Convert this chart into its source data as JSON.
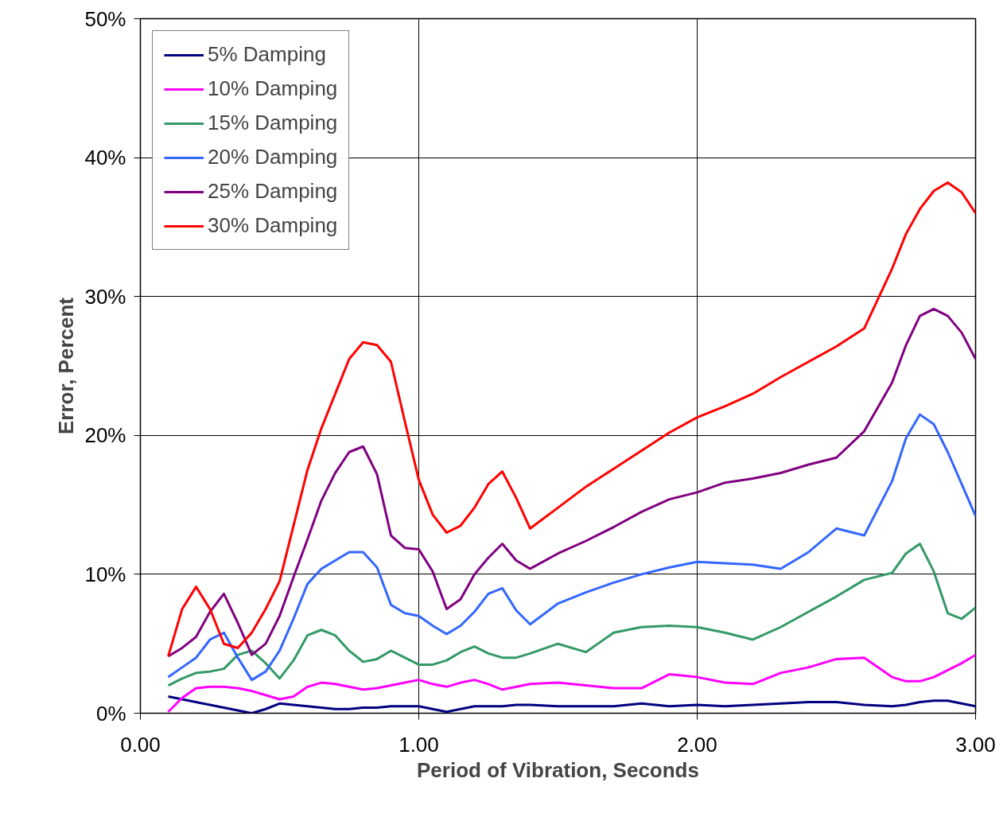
{
  "chart_data": {
    "type": "line",
    "xlabel": "Period of Vibration, Seconds",
    "ylabel": "Error, Percent",
    "x": [
      0.1,
      0.15,
      0.2,
      0.25,
      0.3,
      0.35,
      0.4,
      0.45,
      0.5,
      0.55,
      0.6,
      0.65,
      0.7,
      0.75,
      0.8,
      0.85,
      0.9,
      0.95,
      1.0,
      1.05,
      1.1,
      1.15,
      1.2,
      1.25,
      1.3,
      1.35,
      1.4,
      1.5,
      1.6,
      1.7,
      1.8,
      1.9,
      2.0,
      2.1,
      2.2,
      2.3,
      2.4,
      2.5,
      2.6,
      2.7,
      2.75,
      2.8,
      2.85,
      2.9,
      2.95,
      3.0
    ],
    "series": [
      {
        "name": "5% Damping",
        "color": "#000080",
        "values": [
          1.2,
          1.0,
          0.8,
          0.6,
          0.4,
          0.2,
          0.0,
          0.3,
          0.7,
          0.6,
          0.5,
          0.4,
          0.3,
          0.3,
          0.4,
          0.4,
          0.5,
          0.5,
          0.5,
          0.3,
          0.1,
          0.3,
          0.5,
          0.5,
          0.5,
          0.6,
          0.6,
          0.5,
          0.5,
          0.5,
          0.7,
          0.5,
          0.6,
          0.5,
          0.6,
          0.7,
          0.8,
          0.8,
          0.6,
          0.5,
          0.6,
          0.8,
          0.9,
          0.9,
          0.7,
          0.5
        ]
      },
      {
        "name": "10% Damping",
        "color": "#ff00ff",
        "values": [
          0.1,
          1.1,
          1.8,
          1.9,
          1.9,
          1.8,
          1.6,
          1.3,
          1.0,
          1.2,
          1.9,
          2.2,
          2.1,
          1.9,
          1.7,
          1.8,
          2.0,
          2.2,
          2.4,
          2.1,
          1.9,
          2.2,
          2.4,
          2.1,
          1.7,
          1.9,
          2.1,
          2.2,
          2.0,
          1.8,
          1.8,
          2.8,
          2.6,
          2.2,
          2.1,
          2.9,
          3.3,
          3.9,
          4.0,
          2.6,
          2.3,
          2.3,
          2.6,
          3.1,
          3.6,
          4.2
        ]
      },
      {
        "name": "15% Damping",
        "color": "#339966",
        "values": [
          2.0,
          2.5,
          2.9,
          3.0,
          3.2,
          4.2,
          4.5,
          3.6,
          2.5,
          3.8,
          5.6,
          6.0,
          5.6,
          4.5,
          3.7,
          3.9,
          4.5,
          4.0,
          3.5,
          3.5,
          3.8,
          4.4,
          4.8,
          4.3,
          4.0,
          4.0,
          4.3,
          5.0,
          4.4,
          5.8,
          6.2,
          6.3,
          6.2,
          5.8,
          5.3,
          6.2,
          7.3,
          8.4,
          9.6,
          10.1,
          11.5,
          12.2,
          10.2,
          7.2,
          6.8,
          7.6
        ]
      },
      {
        "name": "20% Damping",
        "color": "#3366ff",
        "values": [
          2.6,
          3.3,
          4.0,
          5.3,
          5.8,
          4.0,
          2.4,
          3.0,
          4.5,
          6.8,
          9.3,
          10.4,
          11.0,
          11.6,
          11.6,
          10.5,
          7.8,
          7.2,
          7.0,
          6.3,
          5.7,
          6.3,
          7.3,
          8.6,
          9.0,
          7.4,
          6.4,
          7.9,
          8.7,
          9.4,
          10.0,
          10.5,
          10.9,
          10.8,
          10.7,
          10.4,
          11.6,
          13.3,
          12.8,
          16.7,
          19.8,
          21.5,
          20.8,
          18.8,
          16.5,
          14.2
        ]
      },
      {
        "name": "25% Damping",
        "color": "#800080",
        "values": [
          4.1,
          4.7,
          5.5,
          7.3,
          8.6,
          6.5,
          4.2,
          5.0,
          7.0,
          9.8,
          12.5,
          15.3,
          17.3,
          18.8,
          19.2,
          17.2,
          12.8,
          11.9,
          11.8,
          10.2,
          7.5,
          8.2,
          10.0,
          11.2,
          12.2,
          11.0,
          10.4,
          11.5,
          12.4,
          13.4,
          14.5,
          15.4,
          15.9,
          16.6,
          16.9,
          17.3,
          17.9,
          18.4,
          20.3,
          23.8,
          26.5,
          28.6,
          29.1,
          28.6,
          27.4,
          25.5
        ]
      },
      {
        "name": "30% Damping",
        "color": "#ff0000",
        "values": [
          4.1,
          7.5,
          9.1,
          7.5,
          5.0,
          4.7,
          5.8,
          7.5,
          9.5,
          13.5,
          17.5,
          20.5,
          23.0,
          25.5,
          26.7,
          26.5,
          25.3,
          21.0,
          16.8,
          14.3,
          13.0,
          13.5,
          14.8,
          16.5,
          17.4,
          15.5,
          13.3,
          14.8,
          16.3,
          17.6,
          18.9,
          20.2,
          21.3,
          22.1,
          23.0,
          24.2,
          25.3,
          26.4,
          27.7,
          32.0,
          34.5,
          36.3,
          37.6,
          38.2,
          37.5,
          36.0
        ]
      }
    ],
    "xlim": [
      0,
      3
    ],
    "xticks": [
      {
        "value": 0,
        "label": "0.00"
      },
      {
        "value": 1,
        "label": "1.00"
      },
      {
        "value": 2,
        "label": "2.00"
      },
      {
        "value": 3,
        "label": "3.00"
      }
    ],
    "ylim": [
      0,
      50
    ],
    "yticks": [
      {
        "value": 0,
        "label": "0%"
      },
      {
        "value": 10,
        "label": "10%"
      },
      {
        "value": 20,
        "label": "20%"
      },
      {
        "value": 30,
        "label": "30%"
      },
      {
        "value": 40,
        "label": "40%"
      },
      {
        "value": 50,
        "label": "50%"
      }
    ],
    "grid": true,
    "legend": "top left",
    "marker": "none",
    "line_style": "solid"
  }
}
